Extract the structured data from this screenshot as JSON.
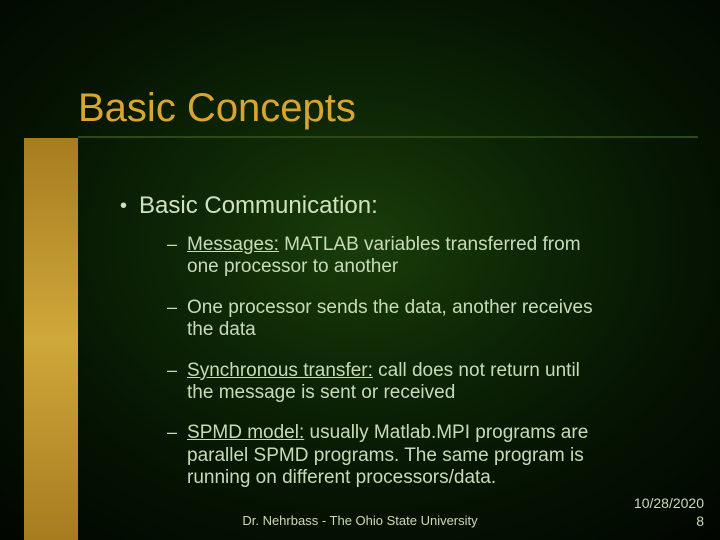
{
  "slide": {
    "title": "Basic Concepts",
    "main_bullet": "Basic Communication:",
    "sub_bullets": [
      {
        "html": "<u>Messages:</u> MATLAB variables transferred from one processor to another"
      },
      {
        "html": "One processor sends the data, another receives the data"
      },
      {
        "html": "<u>Synchronous transfer:</u> call does not return until the message is sent or received"
      },
      {
        "html": "<u>SPMD model:</u> usually Matlab.MPI programs are parallel SPMD programs. The same program is running on different processors/data."
      }
    ],
    "footer_center": "Dr. Nehrbass - The Ohio State University",
    "footer_date": "10/28/2020",
    "footer_page": "8"
  },
  "style": {
    "title_color": "#d9a52e",
    "text_color": "#c8dbb7",
    "main_text_color": "#cfe2bd",
    "gold_bar_color": "#cfa83a",
    "underline_color": "#2d4a15",
    "background_center": "#1a3d0a",
    "background_edge": "#000000",
    "title_fontsize": 40,
    "main_fontsize": 24,
    "sub_fontsize": 19,
    "footer_fontsize": 13
  }
}
